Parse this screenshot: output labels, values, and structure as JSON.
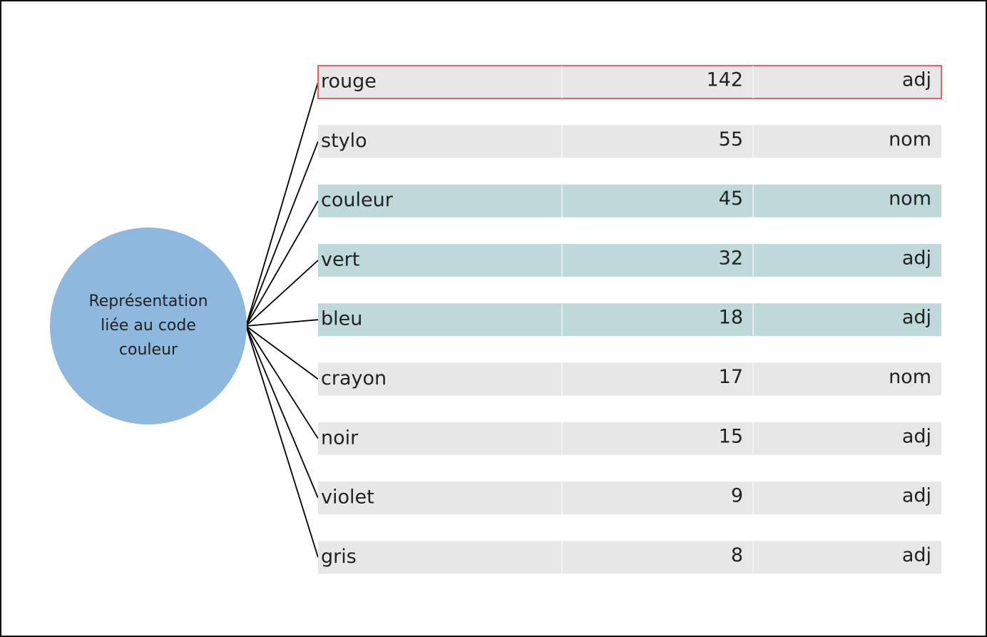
{
  "center": {
    "lines": [
      "Représentation",
      "liée au code",
      "couleur"
    ],
    "color": "#8fb8de"
  },
  "rows": [
    {
      "word": "rouge",
      "count": "142",
      "pos": "adj",
      "fill": "#e7e7e7",
      "border": "#e06666"
    },
    {
      "word": "stylo",
      "count": "55",
      "pos": "nom",
      "fill": "#e7e7e7"
    },
    {
      "word": "couleur",
      "count": "45",
      "pos": "nom",
      "fill": "#bfd9da"
    },
    {
      "word": "vert",
      "count": "32",
      "pos": "adj",
      "fill": "#bfd9da"
    },
    {
      "word": "bleu",
      "count": "18",
      "pos": "adj",
      "fill": "#bfd9da"
    },
    {
      "word": "crayon",
      "count": "17",
      "pos": "nom",
      "fill": "#e7e7e7"
    },
    {
      "word": "noir",
      "count": "15",
      "pos": "adj",
      "fill": "#e7e7e7"
    },
    {
      "word": "violet",
      "count": "9",
      "pos": "adj",
      "fill": "#e7e7e7"
    },
    {
      "word": "gris",
      "count": "8",
      "pos": "adj",
      "fill": "#e7e7e7"
    }
  ]
}
